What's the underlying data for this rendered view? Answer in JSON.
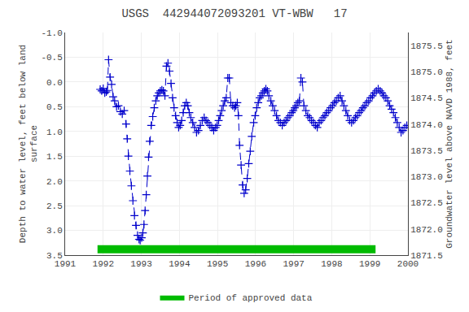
{
  "chart_data": {
    "type": "line",
    "title": "USGS  442944072093201 VT-WBW   17",
    "y_label": "Depth to water level, feet below land\nsurface",
    "y2_label": "Groundwater level above NAVD 1988, feet",
    "xlim": [
      1991,
      2000
    ],
    "xticks": [
      1991,
      1992,
      1993,
      1994,
      1995,
      1996,
      1997,
      1998,
      1999,
      2000
    ],
    "ylim": [
      3.5,
      -1.0
    ],
    "yticks": [
      {
        "value": -1.0,
        "label": "-1.0"
      },
      -0.5,
      {
        "value": 0.0,
        "label": "0.0"
      },
      0.5,
      {
        "value": 1.0,
        "label": "1.0"
      },
      1.5,
      {
        "value": 2.0,
        "label": "2.0"
      },
      2.5,
      {
        "value": 3.0,
        "label": "3.0"
      },
      3.5
    ],
    "y2lim": [
      1871.5,
      1875.75
    ],
    "y2ticks": [
      1871.5,
      {
        "value": 1872.0,
        "label": "1872.0"
      },
      1872.5,
      {
        "value": 1873.0,
        "label": "1873.0"
      },
      1873.5,
      {
        "value": 1874.0,
        "label": "1874.0"
      },
      1874.5,
      {
        "value": 1875.0,
        "label": "1875.0"
      },
      1875.5
    ],
    "grid": true,
    "legend": "bottom",
    "x": [
      1991.92,
      1991.96,
      1992.0,
      1992.04,
      1992.08,
      1992.11,
      1992.14,
      1992.18,
      1992.22,
      1992.26,
      1992.3,
      1992.35,
      1992.4,
      1992.45,
      1992.5,
      1992.55,
      1992.6,
      1992.63,
      1992.66,
      1992.7,
      1992.74,
      1992.78,
      1992.82,
      1992.86,
      1992.9,
      1992.94,
      1992.97,
      1993.01,
      1993.04,
      1993.07,
      1993.1,
      1993.13,
      1993.16,
      1993.19,
      1993.22,
      1993.26,
      1993.3,
      1993.34,
      1993.38,
      1993.42,
      1993.46,
      1993.5,
      1993.54,
      1993.58,
      1993.62,
      1993.66,
      1993.7,
      1993.74,
      1993.78,
      1993.82,
      1993.86,
      1993.9,
      1993.94,
      1993.98,
      1994.02,
      1994.06,
      1994.1,
      1994.14,
      1994.18,
      1994.22,
      1994.26,
      1994.3,
      1994.35,
      1994.4,
      1994.45,
      1994.5,
      1994.55,
      1994.6,
      1994.65,
      1994.7,
      1994.75,
      1994.8,
      1994.85,
      1994.9,
      1994.95,
      1994.99,
      1995.03,
      1995.07,
      1995.11,
      1995.15,
      1995.19,
      1995.23,
      1995.27,
      1995.31,
      1995.35,
      1995.4,
      1995.45,
      1995.48,
      1995.52,
      1995.55,
      1995.58,
      1995.62,
      1995.66,
      1995.7,
      1995.74,
      1995.78,
      1995.82,
      1995.86,
      1995.9,
      1995.95,
      1995.99,
      1996.03,
      1996.07,
      1996.11,
      1996.15,
      1996.19,
      1996.23,
      1996.27,
      1996.31,
      1996.35,
      1996.4,
      1996.45,
      1996.5,
      1996.55,
      1996.6,
      1996.65,
      1996.7,
      1996.75,
      1996.8,
      1996.85,
      1996.9,
      1996.95,
      1996.99,
      1997.03,
      1997.07,
      1997.11,
      1997.15,
      1997.19,
      1997.23,
      1997.27,
      1997.32,
      1997.37,
      1997.42,
      1997.47,
      1997.52,
      1997.57,
      1997.62,
      1997.67,
      1997.72,
      1997.77,
      1997.82,
      1997.87,
      1997.92,
      1997.97,
      1998.02,
      1998.07,
      1998.12,
      1998.17,
      1998.22,
      1998.27,
      1998.32,
      1998.37,
      1998.42,
      1998.47,
      1998.52,
      1998.57,
      1998.62,
      1998.67,
      1998.72,
      1998.77,
      1998.82,
      1998.87,
      1998.92,
      1998.97,
      1999.02,
      1999.07,
      1999.12,
      1999.17,
      1999.22,
      1999.27,
      1999.32,
      1999.37,
      1999.42,
      1999.47,
      1999.52,
      1999.57,
      1999.62,
      1999.67,
      1999.72,
      1999.77,
      1999.82,
      1999.87,
      1999.92,
      1999.97
    ],
    "series": [
      {
        "type": "line",
        "color": "#0000cc",
        "marker": "plus",
        "line_style": "dashed",
        "values": [
          0.15,
          0.18,
          0.13,
          0.22,
          0.2,
          0.17,
          -0.45,
          -0.1,
          0.05,
          0.3,
          0.38,
          0.5,
          0.48,
          0.6,
          0.65,
          0.58,
          0.85,
          1.15,
          1.5,
          1.8,
          2.1,
          2.4,
          2.7,
          2.9,
          3.1,
          3.18,
          3.2,
          3.15,
          3.05,
          2.88,
          2.6,
          2.28,
          1.9,
          1.52,
          1.2,
          0.88,
          0.7,
          0.52,
          0.38,
          0.28,
          0.22,
          0.18,
          0.16,
          0.18,
          0.28,
          -0.32,
          -0.38,
          -0.22,
          0.03,
          0.32,
          0.52,
          0.68,
          0.82,
          0.92,
          0.88,
          0.78,
          0.62,
          0.48,
          0.42,
          0.48,
          0.62,
          0.72,
          0.82,
          0.92,
          1.02,
          0.98,
          0.88,
          0.78,
          0.72,
          0.78,
          0.82,
          0.88,
          0.92,
          0.98,
          0.92,
          0.88,
          0.78,
          0.68,
          0.58,
          0.48,
          0.38,
          0.32,
          -0.08,
          -0.08,
          0.42,
          0.48,
          0.52,
          0.48,
          0.42,
          0.68,
          1.28,
          1.68,
          2.08,
          2.25,
          2.18,
          1.95,
          1.65,
          1.4,
          1.1,
          0.82,
          0.68,
          0.52,
          0.42,
          0.32,
          0.28,
          0.22,
          0.18,
          0.14,
          0.18,
          0.28,
          0.38,
          0.48,
          0.58,
          0.68,
          0.78,
          0.82,
          0.88,
          0.82,
          0.78,
          0.72,
          0.68,
          0.62,
          0.58,
          0.52,
          0.48,
          0.42,
          0.38,
          -0.08,
          0.0,
          0.48,
          0.58,
          0.68,
          0.72,
          0.78,
          0.82,
          0.88,
          0.92,
          0.82,
          0.78,
          0.72,
          0.68,
          0.62,
          0.58,
          0.52,
          0.48,
          0.42,
          0.38,
          0.32,
          0.28,
          0.38,
          0.48,
          0.58,
          0.68,
          0.78,
          0.82,
          0.78,
          0.72,
          0.68,
          0.62,
          0.58,
          0.52,
          0.48,
          0.42,
          0.38,
          0.32,
          0.28,
          0.22,
          0.18,
          0.14,
          0.18,
          0.22,
          0.28,
          0.32,
          0.38,
          0.48,
          0.55,
          0.62,
          0.72,
          0.82,
          0.92,
          1.02,
          0.98,
          0.92,
          0.88
        ]
      },
      {
        "type": "band",
        "name": "Period of approved data",
        "color": "#00bb00",
        "x": [
          1991.85,
          1999.15
        ]
      }
    ]
  }
}
